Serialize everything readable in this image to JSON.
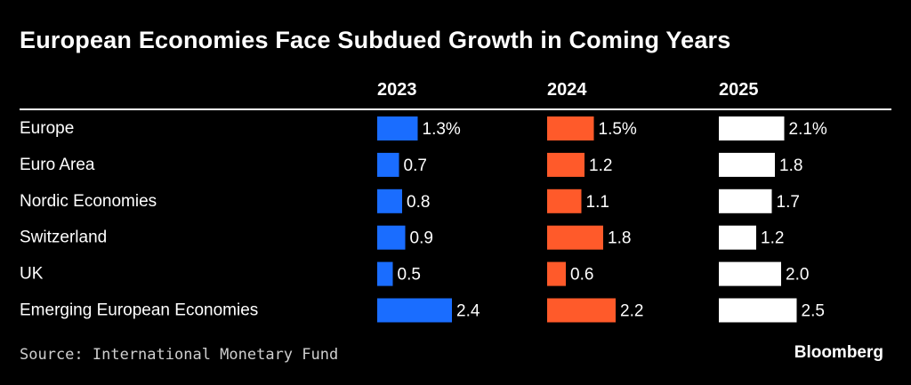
{
  "chart_data": {
    "type": "bar",
    "title": "European Economies Face Subdued Growth in Coming Years",
    "categories": [
      "Europe",
      "Euro Area",
      "Nordic Economies",
      "Switzerland",
      "UK",
      "Emerging European Economies"
    ],
    "series": [
      {
        "name": "2023",
        "color": "#1a6dff",
        "values": [
          1.3,
          0.7,
          0.8,
          0.9,
          0.5,
          2.4
        ],
        "labels": [
          "1.3%",
          "0.7",
          "0.8",
          "0.9",
          "0.5",
          "2.4"
        ]
      },
      {
        "name": "2024",
        "color": "#ff5a2a",
        "values": [
          1.5,
          1.2,
          1.1,
          1.8,
          0.6,
          2.2
        ],
        "labels": [
          "1.5%",
          "1.2",
          "1.1",
          "1.8",
          "0.6",
          "2.2"
        ]
      },
      {
        "name": "2025",
        "color": "#ffffff",
        "values": [
          2.1,
          1.8,
          1.7,
          1.2,
          2.0,
          2.5
        ],
        "labels": [
          "2.1%",
          "1.8",
          "1.7",
          "1.2",
          "2.0",
          "2.5"
        ]
      }
    ],
    "layout": "small-multiple horizontal bars, one column per year"
  },
  "source": "Source: International Monetary Fund",
  "brand": "Bloomberg"
}
